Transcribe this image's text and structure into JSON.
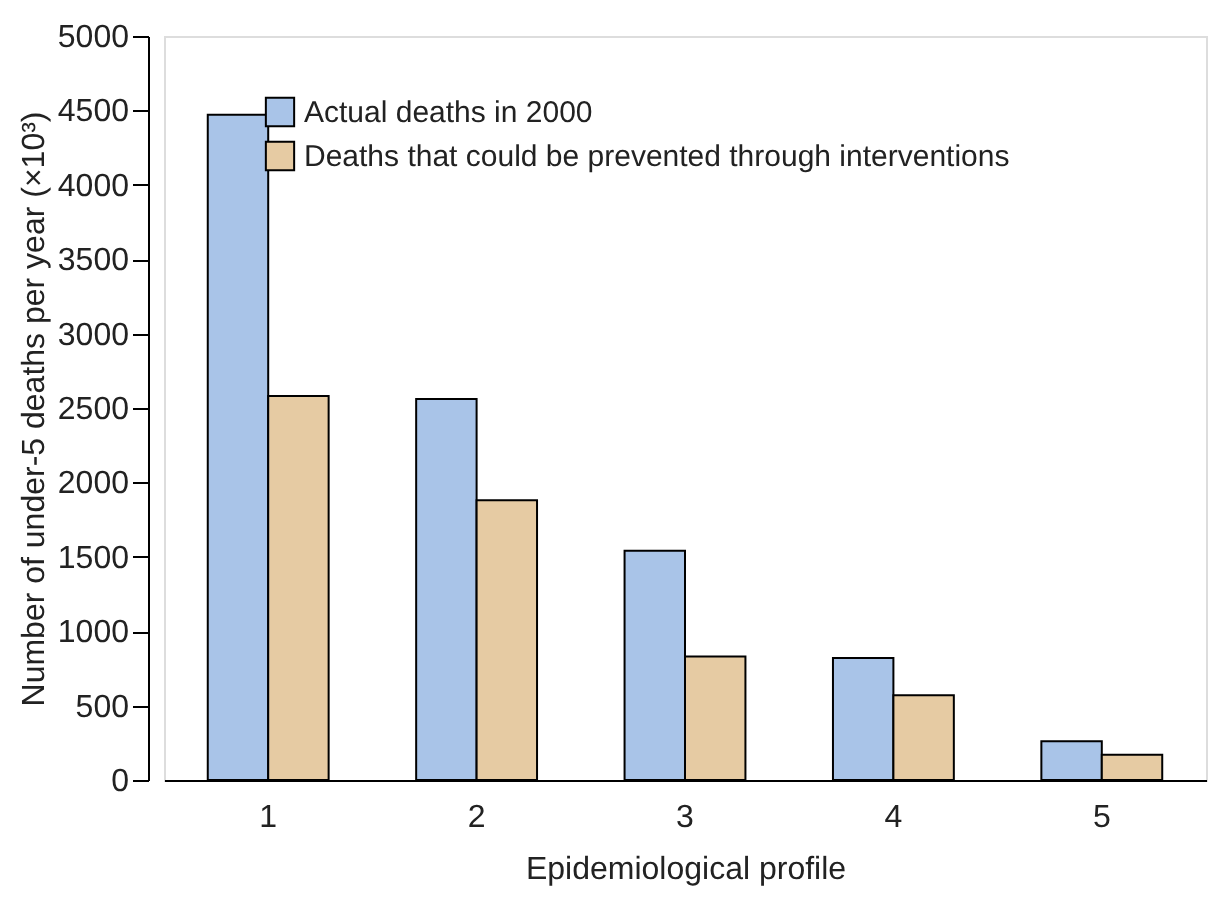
{
  "chart_data": {
    "type": "bar",
    "xlabel": "Epidemiological profile",
    "ylabel": "Number of under-5 deaths per year (×10³)",
    "categories": [
      "1",
      "2",
      "3",
      "4",
      "5"
    ],
    "series": [
      {
        "name": "Actual deaths in 2000",
        "color": "#a9c4e8",
        "values": [
          4470,
          2560,
          1540,
          820,
          260
        ]
      },
      {
        "name": "Deaths that could be prevented through interventions",
        "color": "#e6cba3",
        "values": [
          2580,
          1880,
          830,
          570,
          170
        ]
      }
    ],
    "ylim": [
      0,
      5000
    ],
    "yticks": [
      0,
      500,
      1000,
      1500,
      2000,
      2500,
      3000,
      3500,
      4000,
      4500,
      5000
    ],
    "grid": false,
    "legend": "top"
  }
}
